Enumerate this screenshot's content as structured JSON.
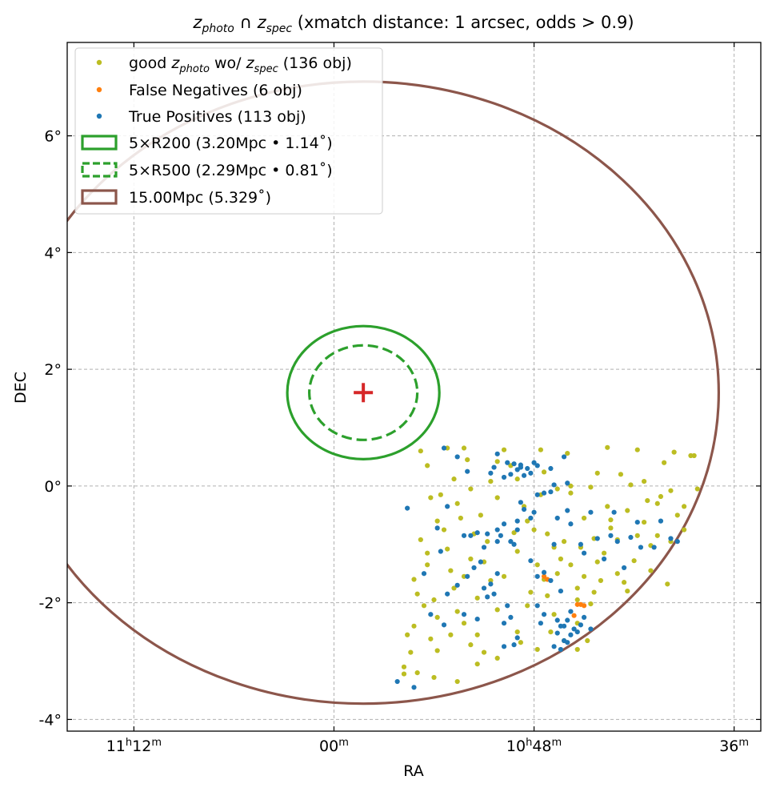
{
  "chart_data": {
    "type": "scatter",
    "title_prefix": "z",
    "title_sub1": "photo",
    "title_sub2": "spec",
    "title_suffix": " (xmatch distance: 1 arcsec, odds > 0.9)",
    "title": "z_photo ∩ z_spec (xmatch distance: 1 arcsec, odds > 0.9)",
    "xlabel": "RA",
    "ylabel": "DEC",
    "xlim": [
      169.0,
      158.6
    ],
    "ylim": [
      -4.2,
      7.6
    ],
    "x_ticks": [
      {
        "value": 168.0,
        "hour": "11",
        "hsup": "h",
        "minute": "12",
        "msup": "m"
      },
      {
        "value": 165.0,
        "hour": "",
        "hsup": "",
        "minute": "00",
        "msup": "m"
      },
      {
        "value": 162.0,
        "hour": "10",
        "hsup": "h",
        "minute": "48",
        "msup": "m"
      },
      {
        "value": 159.0,
        "hour": "",
        "hsup": "",
        "minute": "36",
        "msup": "m"
      }
    ],
    "y_ticks": [
      {
        "value": 6,
        "label": "6°"
      },
      {
        "value": 4,
        "label": "4°"
      },
      {
        "value": 2,
        "label": "2°"
      },
      {
        "value": 0,
        "label": "0°"
      },
      {
        "value": -2,
        "label": "-2°"
      },
      {
        "value": -4,
        "label": "-4°"
      }
    ],
    "center": {
      "ra": 164.56,
      "dec": 1.6,
      "marker": "+",
      "color": "#d62728"
    },
    "circles": [
      {
        "name": "5×R200",
        "radius_deg": 1.14,
        "color": "#2ca02c",
        "style": "solid"
      },
      {
        "name": "5×R500",
        "radius_deg": 0.81,
        "color": "#2ca02c",
        "style": "dashed"
      },
      {
        "name": "15.00Mpc",
        "radius_deg": 5.329,
        "color": "#8c564b",
        "style": "solid"
      }
    ],
    "legend": {
      "position": "top-left",
      "entries": [
        {
          "kind": "point",
          "color": "#bcbd22",
          "pre": "good ",
          "sub1": "photo",
          "mid": " wo/ ",
          "sub2": "spec",
          "post": " (136 obj)"
        },
        {
          "kind": "point",
          "color": "#ff7f0e",
          "text": "False Negatives (6 obj)"
        },
        {
          "kind": "point",
          "color": "#1f77b4",
          "text": "True Positives (113 obj)"
        },
        {
          "kind": "box",
          "color": "#2ca02c",
          "style": "solid",
          "text": "5×R200 (3.20Mpc • 1.14˚)"
        },
        {
          "kind": "box",
          "color": "#2ca02c",
          "style": "dashed",
          "text": "5×R500 (2.29Mpc • 0.81˚)"
        },
        {
          "kind": "box",
          "color": "#8c564b",
          "style": "solid",
          "text": "15.00Mpc (5.329˚)"
        }
      ]
    },
    "series": [
      {
        "name": "good z_photo wo/ z_spec",
        "color": "#bcbd22",
        "count": 136,
        "points": [
          [
            163.3,
            0.65
          ],
          [
            163.05,
            0.65
          ],
          [
            162.45,
            0.62
          ],
          [
            161.9,
            0.62
          ],
          [
            161.5,
            0.56
          ],
          [
            160.9,
            0.66
          ],
          [
            160.45,
            0.62
          ],
          [
            159.9,
            0.58
          ],
          [
            159.65,
            0.52
          ],
          [
            161.05,
            0.22
          ],
          [
            161.85,
            0.24
          ],
          [
            162.55,
            0.42
          ],
          [
            162.25,
            0.12
          ],
          [
            161.15,
            -0.02
          ],
          [
            161.45,
            -0.12
          ],
          [
            160.35,
            0.08
          ],
          [
            159.95,
            -0.08
          ],
          [
            159.75,
            -0.35
          ],
          [
            159.55,
            -0.05
          ],
          [
            160.1,
            -0.18
          ],
          [
            163.7,
            0.6
          ],
          [
            163.6,
            0.35
          ],
          [
            163.2,
            0.12
          ],
          [
            162.95,
            -0.05
          ],
          [
            163.55,
            -0.2
          ],
          [
            163.15,
            -0.3
          ],
          [
            162.8,
            -0.5
          ],
          [
            163.45,
            -0.6
          ],
          [
            163.7,
            -0.92
          ],
          [
            163.3,
            -1.08
          ],
          [
            162.95,
            -1.25
          ],
          [
            163.6,
            -1.15
          ],
          [
            162.7,
            -0.95
          ],
          [
            162.3,
            -0.8
          ],
          [
            162.1,
            -0.6
          ],
          [
            161.8,
            -0.82
          ],
          [
            161.55,
            -0.95
          ],
          [
            161.3,
            -1.05
          ],
          [
            161.1,
            -0.9
          ],
          [
            160.75,
            -0.92
          ],
          [
            160.45,
            -0.85
          ],
          [
            160.25,
            -1.02
          ],
          [
            159.95,
            -0.95
          ],
          [
            159.75,
            -0.75
          ],
          [
            160.35,
            -0.62
          ],
          [
            160.6,
            -0.42
          ],
          [
            160.9,
            -0.35
          ],
          [
            161.25,
            -0.55
          ],
          [
            162.25,
            -1.12
          ],
          [
            161.95,
            -1.35
          ],
          [
            161.65,
            -1.5
          ],
          [
            161.45,
            -1.35
          ],
          [
            161.25,
            -1.55
          ],
          [
            161.05,
            -1.3
          ],
          [
            160.75,
            -1.5
          ],
          [
            160.5,
            -1.28
          ],
          [
            160.25,
            -1.45
          ],
          [
            160.0,
            -1.68
          ],
          [
            160.6,
            -1.8
          ],
          [
            161.1,
            -1.82
          ],
          [
            161.35,
            -1.95
          ],
          [
            161.8,
            -1.88
          ],
          [
            162.1,
            -2.05
          ],
          [
            162.55,
            -2.12
          ],
          [
            162.85,
            -1.92
          ],
          [
            163.2,
            -1.75
          ],
          [
            163.5,
            -1.95
          ],
          [
            163.75,
            -1.85
          ],
          [
            163.45,
            -2.25
          ],
          [
            163.25,
            -2.55
          ],
          [
            163.55,
            -2.62
          ],
          [
            163.8,
            -2.4
          ],
          [
            162.95,
            -2.72
          ],
          [
            162.55,
            -2.95
          ],
          [
            162.2,
            -2.68
          ],
          [
            161.55,
            -2.65
          ],
          [
            161.35,
            -2.35
          ],
          [
            161.7,
            -2.2
          ],
          [
            163.95,
            -3.1
          ],
          [
            163.75,
            -3.2
          ],
          [
            163.5,
            -3.28
          ],
          [
            163.85,
            -2.85
          ],
          [
            162.85,
            -3.05
          ],
          [
            163.15,
            -3.35
          ],
          [
            161.95,
            -2.8
          ],
          [
            163.65,
            -2.05
          ],
          [
            163.05,
            -1.55
          ],
          [
            162.65,
            -1.62
          ],
          [
            162.05,
            -1.82
          ],
          [
            163.95,
            -3.22
          ],
          [
            163.9,
            -2.55
          ],
          [
            163.45,
            -2.82
          ],
          [
            163.05,
            -2.35
          ],
          [
            162.75,
            -2.85
          ],
          [
            161.35,
            -2.8
          ],
          [
            161.2,
            -2.65
          ],
          [
            161.9,
            -0.15
          ],
          [
            161.65,
            -0.05
          ],
          [
            160.55,
            0.02
          ],
          [
            160.15,
            -0.3
          ],
          [
            163.0,
            0.45
          ],
          [
            162.35,
            0.35
          ],
          [
            159.85,
            -0.5
          ],
          [
            160.7,
            0.2
          ],
          [
            161.45,
            0.0
          ],
          [
            162.75,
            -1.3
          ],
          [
            163.35,
            -0.75
          ],
          [
            160.95,
            -1.15
          ],
          [
            160.15,
            -0.85
          ],
          [
            162.55,
            -0.2
          ],
          [
            161.7,
            -1.05
          ],
          [
            162.15,
            -0.35
          ],
          [
            161.6,
            -1.25
          ],
          [
            163.1,
            -0.55
          ],
          [
            162.65,
            0.08
          ],
          [
            160.85,
            -0.72
          ],
          [
            163.25,
            -1.45
          ],
          [
            162.25,
            -2.5
          ],
          [
            161.15,
            -2.02
          ],
          [
            160.65,
            -1.65
          ],
          [
            160.3,
            -0.25
          ],
          [
            162.0,
            -0.75
          ],
          [
            163.4,
            -0.15
          ],
          [
            161.35,
            -1.75
          ],
          [
            161.85,
            -1.6
          ],
          [
            160.05,
            0.4
          ],
          [
            163.8,
            -1.6
          ],
          [
            161.75,
            -2.5
          ],
          [
            162.45,
            -1.55
          ],
          [
            160.85,
            -0.58
          ],
          [
            162.9,
            -0.82
          ],
          [
            161.0,
            -1.62
          ],
          [
            163.6,
            -1.35
          ],
          [
            159.6,
            0.52
          ],
          [
            163.15,
            -2.15
          ],
          [
            162.85,
            -2.55
          ]
        ]
      },
      {
        "name": "False Negatives",
        "color": "#ff7f0e",
        "count": 6,
        "points": [
          [
            161.8,
            -1.6
          ],
          [
            161.35,
            -2.03
          ],
          [
            161.4,
            -2.22
          ],
          [
            161.3,
            -2.03
          ],
          [
            161.25,
            -2.05
          ],
          [
            161.85,
            -1.55
          ]
        ]
      },
      {
        "name": "True Positives",
        "color": "#1f77b4",
        "count": 113,
        "points": [
          [
            163.35,
            0.65
          ],
          [
            163.15,
            0.5
          ],
          [
            162.55,
            0.55
          ],
          [
            162.4,
            0.4
          ],
          [
            162.3,
            0.38
          ],
          [
            162.2,
            0.36
          ],
          [
            162.1,
            0.3
          ],
          [
            162.0,
            0.4
          ],
          [
            162.25,
            0.28
          ],
          [
            162.35,
            0.2
          ],
          [
            162.45,
            0.15
          ],
          [
            162.15,
            0.18
          ],
          [
            162.05,
            0.22
          ],
          [
            161.95,
            0.35
          ],
          [
            161.75,
            0.3
          ],
          [
            162.2,
            0.32
          ],
          [
            162.6,
            0.32
          ],
          [
            162.65,
            0.22
          ],
          [
            163.0,
            0.25
          ],
          [
            161.55,
            0.5
          ],
          [
            161.5,
            0.05
          ],
          [
            161.75,
            -0.1
          ],
          [
            161.85,
            -0.12
          ],
          [
            161.95,
            -0.15
          ],
          [
            160.85,
            -0.85
          ],
          [
            160.55,
            -0.88
          ],
          [
            160.4,
            -1.05
          ],
          [
            160.2,
            -1.05
          ],
          [
            159.95,
            -0.9
          ],
          [
            159.85,
            -0.95
          ],
          [
            160.1,
            -0.6
          ],
          [
            160.8,
            -0.45
          ],
          [
            161.15,
            -0.45
          ],
          [
            161.5,
            -0.42
          ],
          [
            161.65,
            -0.55
          ],
          [
            161.45,
            -0.65
          ],
          [
            161.25,
            -1.15
          ],
          [
            160.95,
            -1.25
          ],
          [
            160.65,
            -1.4
          ],
          [
            161.7,
            -1.0
          ],
          [
            162.15,
            -0.4
          ],
          [
            162.05,
            -0.55
          ],
          [
            162.25,
            -0.6
          ],
          [
            162.45,
            -0.65
          ],
          [
            162.5,
            -0.85
          ],
          [
            162.55,
            -0.75
          ],
          [
            162.35,
            -0.95
          ],
          [
            162.25,
            -0.75
          ],
          [
            162.7,
            -0.82
          ],
          [
            162.85,
            -0.8
          ],
          [
            162.95,
            -0.85
          ],
          [
            162.3,
            -1.0
          ],
          [
            162.05,
            -1.28
          ],
          [
            163.3,
            -0.35
          ],
          [
            163.45,
            -0.72
          ],
          [
            163.05,
            -0.85
          ],
          [
            162.75,
            -1.05
          ],
          [
            162.8,
            -1.3
          ],
          [
            162.55,
            -1.5
          ],
          [
            162.65,
            -1.68
          ],
          [
            162.75,
            -1.75
          ],
          [
            162.6,
            -1.85
          ],
          [
            162.7,
            -1.9
          ],
          [
            162.4,
            -2.05
          ],
          [
            161.95,
            -2.05
          ],
          [
            161.85,
            -2.2
          ],
          [
            161.65,
            -2.3
          ],
          [
            161.6,
            -2.4
          ],
          [
            161.5,
            -2.3
          ],
          [
            161.45,
            -2.15
          ],
          [
            161.25,
            -2.25
          ],
          [
            161.3,
            -2.38
          ],
          [
            161.35,
            -2.5
          ],
          [
            161.45,
            -2.55
          ],
          [
            161.55,
            -2.65
          ],
          [
            161.6,
            -2.8
          ],
          [
            161.7,
            -2.75
          ],
          [
            161.5,
            -2.68
          ],
          [
            161.4,
            -2.45
          ],
          [
            161.55,
            -2.4
          ],
          [
            161.15,
            -2.45
          ],
          [
            161.65,
            -2.52
          ],
          [
            161.85,
            -1.48
          ],
          [
            161.95,
            -1.55
          ],
          [
            161.75,
            -1.62
          ],
          [
            161.6,
            -1.8
          ],
          [
            162.35,
            -2.25
          ],
          [
            162.45,
            -2.35
          ],
          [
            162.25,
            -2.6
          ],
          [
            162.45,
            -2.75
          ],
          [
            162.3,
            -2.72
          ],
          [
            162.85,
            -2.28
          ],
          [
            163.05,
            -2.2
          ],
          [
            163.35,
            -2.38
          ],
          [
            163.65,
            -1.5
          ],
          [
            163.8,
            -3.45
          ],
          [
            164.05,
            -3.35
          ],
          [
            163.55,
            -2.2
          ],
          [
            163.3,
            -1.85
          ],
          [
            163.15,
            -1.7
          ],
          [
            162.9,
            -1.4
          ],
          [
            162.2,
            -0.28
          ],
          [
            161.3,
            -1.0
          ],
          [
            161.05,
            -0.9
          ],
          [
            160.75,
            -0.95
          ],
          [
            160.45,
            -0.62
          ],
          [
            161.7,
            0.02
          ],
          [
            162.0,
            -0.45
          ],
          [
            162.55,
            -0.95
          ],
          [
            163.0,
            -1.55
          ],
          [
            161.9,
            -2.35
          ],
          [
            163.9,
            -0.38
          ],
          [
            163.4,
            -1.12
          ]
        ]
      }
    ]
  }
}
